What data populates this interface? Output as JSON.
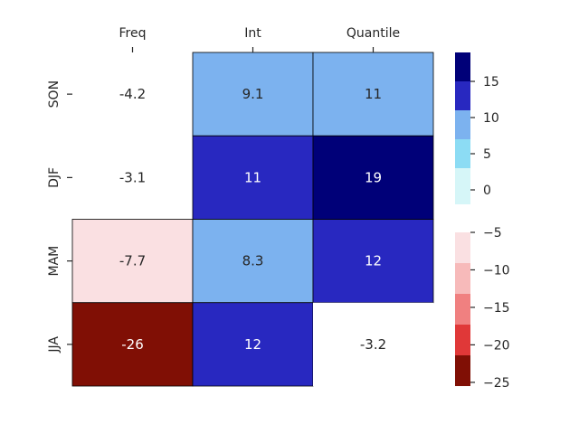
{
  "chart_data": {
    "type": "heatmap",
    "title": "",
    "xlabel": "",
    "ylabel": "",
    "columns": [
      "Freq",
      "Int",
      "Quantile"
    ],
    "rows": [
      "SON",
      "DJF",
      "MAM",
      "JJA"
    ],
    "values": [
      [
        -4.2,
        9.1,
        11
      ],
      [
        -3.1,
        11,
        19
      ],
      [
        -7.7,
        8.3,
        12
      ],
      [
        -26,
        12,
        -3.2
      ]
    ],
    "labels": [
      [
        "-4.2",
        "9.1",
        "11"
      ],
      [
        "-3.1",
        "11",
        "19"
      ],
      [
        "-7.7",
        "8.3",
        "12"
      ],
      [
        "-26",
        "12",
        "-3.2"
      ]
    ],
    "colors": [
      [
        "#ffffff",
        "#7cb2ef",
        "#7cb2ef"
      ],
      [
        "#ffffff",
        "#2828c0",
        "#000078"
      ],
      [
        "#fae0e2",
        "#7cb2ef",
        "#2828c0"
      ],
      [
        "#800f05",
        "#2828c0",
        "#ffffff"
      ]
    ],
    "label_colors": [
      [
        "#262626",
        "#262626",
        "#262626"
      ],
      [
        "#262626",
        "#ffffff",
        "#ffffff"
      ],
      [
        "#262626",
        "#262626",
        "#ffffff"
      ],
      [
        "#ffffff",
        "#ffffff",
        "#262626"
      ]
    ],
    "colorbar_positive": {
      "range": [
        -2,
        19
      ],
      "ticks": [
        0,
        5,
        10,
        15
      ],
      "tick_labels": [
        "0",
        "5",
        "10",
        "15"
      ],
      "bins": [
        {
          "from": -2,
          "to": 3,
          "color": "#d6f6f8"
        },
        {
          "from": 3,
          "to": 7,
          "color": "#8cdcf4"
        },
        {
          "from": 7,
          "to": 11,
          "color": "#7cb2ef"
        },
        {
          "from": 11,
          "to": 15,
          "color": "#2828c0"
        },
        {
          "from": 15,
          "to": 19,
          "color": "#000078"
        }
      ]
    },
    "colorbar_negative": {
      "range": [
        -25.5,
        -5
      ],
      "ticks": [
        -5,
        -10,
        -15,
        -20,
        -25
      ],
      "tick_labels": [
        "−5",
        "−10",
        "−15",
        "−20",
        "−25"
      ],
      "bins": [
        {
          "from": -9.1,
          "to": -5,
          "color": "#fae0e2"
        },
        {
          "from": -13.2,
          "to": -9.1,
          "color": "#f7baba"
        },
        {
          "from": -17.3,
          "to": -13.2,
          "color": "#f08080"
        },
        {
          "from": -21.4,
          "to": -17.3,
          "color": "#e03838"
        },
        {
          "from": -25.5,
          "to": -21.4,
          "color": "#800f05"
        }
      ]
    }
  }
}
